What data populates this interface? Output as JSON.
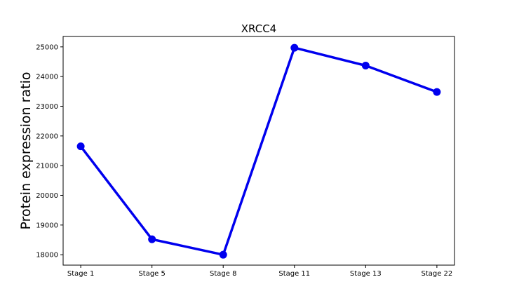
{
  "chart_data": {
    "type": "line",
    "title": "XRCC4",
    "xlabel": "",
    "ylabel": "Protein expression ratio",
    "categories": [
      "Stage 1",
      "Stage 5",
      "Stage 8",
      "Stage 11",
      "Stage 13",
      "Stage 22"
    ],
    "series": [
      {
        "values": [
          21650,
          18520,
          18000,
          24970,
          24370,
          23480
        ],
        "color": "#0000ee"
      }
    ],
    "ylim": [
      17650,
      25350
    ],
    "yticks": [
      18000,
      19000,
      20000,
      21000,
      22000,
      23000,
      24000,
      25000
    ],
    "grid": false,
    "legend": "none"
  }
}
